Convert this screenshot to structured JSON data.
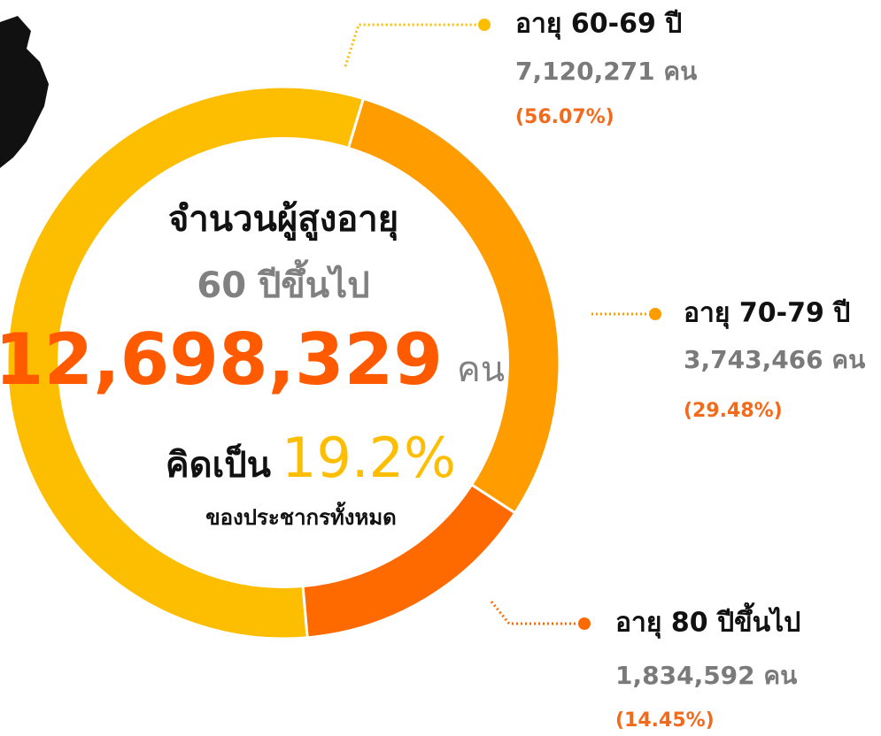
{
  "chart_data": {
    "type": "donut",
    "categories": [
      "อายุ 60-69 ปี",
      "อายุ 70-79 ปี",
      "อายุ 80 ปีขึ้นไป"
    ],
    "values": [
      56.07,
      29.48,
      14.45
    ],
    "value_labels": [
      "(56.07%)",
      "(29.48%)",
      "(14.45%)"
    ],
    "counts": [
      7120271,
      3743466,
      1834592
    ],
    "count_labels": [
      "7,120,271 คน",
      "3,743,466 คน",
      "1,834,592 คน"
    ],
    "colors": [
      "#fdbd00",
      "#ff9c00",
      "#ff6a00"
    ],
    "center": {
      "title": "จำนวนผู้สูงอายุ",
      "subtitle": "60 ปีขึ้นไป",
      "total": "12,698,329",
      "unit": "คน",
      "share_prefix": "คิดเป็น",
      "share": "19.2%",
      "share_note": "ของประชากรทั้งหมด"
    }
  }
}
